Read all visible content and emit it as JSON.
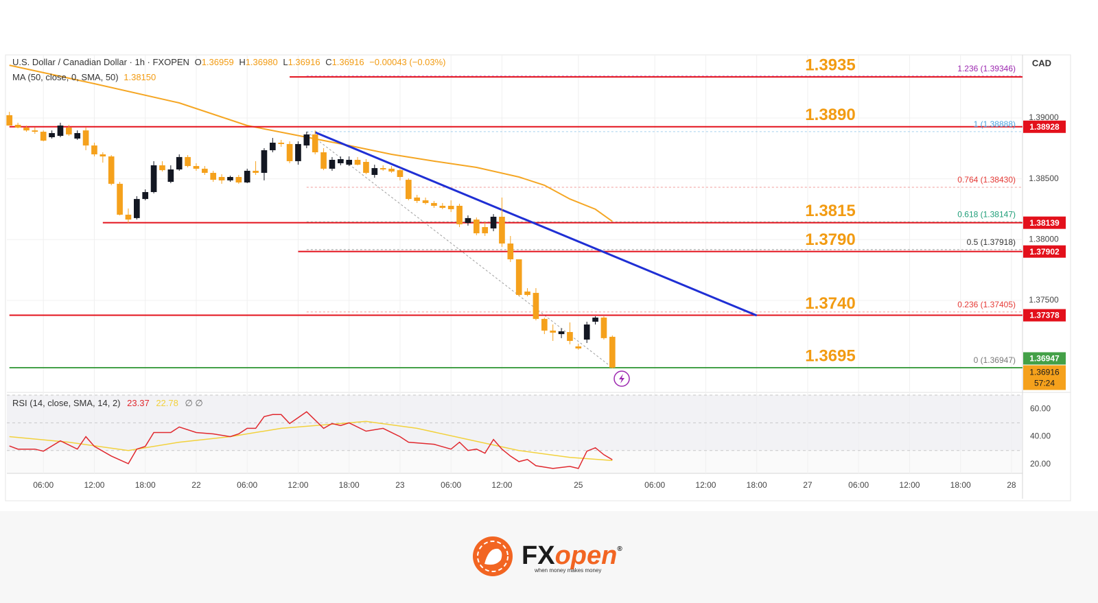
{
  "chart_data": {
    "type": "candlestick",
    "header": {
      "symbol": "U.S. Dollar / Canadian Dollar · 1h · FXOPEN",
      "o_label": "O",
      "open": "1.36959",
      "h_label": "H",
      "high": "1.36980",
      "l_label": "L",
      "low": "1.36916",
      "c_label": "C",
      "close": "1.36916",
      "change": "−0.00043 (−0.03%)"
    },
    "currency": "CAD",
    "xlim": [
      -0.3,
      119.3
    ],
    "xticks": [
      {
        "value": 4,
        "label": "06:00"
      },
      {
        "value": 10,
        "label": "12:00"
      },
      {
        "value": 16,
        "label": "18:00"
      },
      {
        "value": 22,
        "label": "22"
      },
      {
        "value": 28,
        "label": "06:00"
      },
      {
        "value": 34,
        "label": "12:00"
      },
      {
        "value": 40,
        "label": "18:00"
      },
      {
        "value": 46,
        "label": "23"
      },
      {
        "value": 52,
        "label": "06:00"
      },
      {
        "value": 58,
        "label": "12:00"
      },
      {
        "value": 67,
        "label": "25"
      },
      {
        "value": 76,
        "label": "06:00"
      },
      {
        "value": 82,
        "label": "12:00"
      },
      {
        "value": 88,
        "label": "18:00"
      },
      {
        "value": 94,
        "label": "27"
      },
      {
        "value": 100,
        "label": "06:00"
      },
      {
        "value": 106,
        "label": "12:00"
      },
      {
        "value": 112,
        "label": "18:00"
      },
      {
        "value": 118,
        "label": "28"
      }
    ],
    "ylim": [
      1.36755,
      1.39519
    ],
    "yticks": [
      {
        "value": 1.375,
        "label": "1.37500"
      },
      {
        "value": 1.38,
        "label": "1.38000"
      },
      {
        "value": 1.385,
        "label": "1.38500"
      },
      {
        "value": 1.39,
        "label": "1.39000"
      }
    ],
    "grid": true,
    "up_color": "#131722",
    "down_color": "#f5a11c",
    "open": [
      1.39023,
      1.38944,
      1.38921,
      1.38898,
      1.38887,
      1.38842,
      1.38853,
      1.38921,
      1.38831,
      1.38898,
      1.38774,
      1.38701,
      1.38684,
      1.38459,
      1.38205,
      1.38177,
      1.38334,
      1.38391,
      1.38611,
      1.38475,
      1.38577,
      1.38679,
      1.38605,
      1.38583,
      1.38549,
      1.38515,
      1.38487,
      1.38515,
      1.3847,
      1.38566,
      1.38549,
      1.38735,
      1.38797,
      1.38786,
      1.38645,
      1.38774,
      1.38865,
      1.38718,
      1.38583,
      1.38628,
      1.38616,
      1.38656,
      1.38639,
      1.38532,
      1.38588,
      1.38583,
      1.38571,
      1.38492,
      1.38346,
      1.38323,
      1.38301,
      1.38278,
      1.38278,
      1.38278,
      1.38137,
      1.38165,
      1.38103,
      1.38092,
      1.38188,
      1.37968,
      1.37838,
      1.37573,
      1.37562,
      1.37348,
      1.37252,
      1.37223,
      1.3724,
      1.37122,
      1.37178,
      1.37325,
      1.37359,
      1.37201
    ],
    "high": [
      1.39051,
      1.38961,
      1.38938,
      1.38921,
      1.38898,
      1.38898,
      1.38961,
      1.38944,
      1.38898,
      1.38921,
      1.38797,
      1.38718,
      1.38695,
      1.38475,
      1.38256,
      1.38357,
      1.38413,
      1.38645,
      1.38645,
      1.38611,
      1.38701,
      1.38695,
      1.38628,
      1.38605,
      1.38566,
      1.38538,
      1.38526,
      1.38532,
      1.38583,
      1.38645,
      1.38752,
      1.38836,
      1.3882,
      1.38808,
      1.38808,
      1.38887,
      1.38898,
      1.38752,
      1.38679,
      1.38684,
      1.38684,
      1.38679,
      1.38662,
      1.38616,
      1.38611,
      1.38605,
      1.38588,
      1.38504,
      1.38368,
      1.38346,
      1.38318,
      1.38301,
      1.38323,
      1.38295,
      1.38199,
      1.38182,
      1.38143,
      1.3821,
      1.38346,
      1.3803,
      1.37838,
      1.37601,
      1.37601,
      1.37359,
      1.37302,
      1.37269,
      1.37319,
      1.37144,
      1.37325,
      1.3737,
      1.3737,
      1.37212
    ],
    "low": [
      1.38938,
      1.38915,
      1.38887,
      1.3887,
      1.38808,
      1.38831,
      1.38842,
      1.38853,
      1.3882,
      1.38735,
      1.38684,
      1.38633,
      1.38447,
      1.38199,
      1.38137,
      1.38165,
      1.38323,
      1.3838,
      1.3856,
      1.38464,
      1.38566,
      1.38594,
      1.38566,
      1.38532,
      1.38475,
      1.38459,
      1.38475,
      1.38459,
      1.38464,
      1.38532,
      1.38487,
      1.38718,
      1.38763,
      1.38628,
      1.38616,
      1.38752,
      1.38701,
      1.38571,
      1.38566,
      1.38611,
      1.38605,
      1.38611,
      1.38538,
      1.38509,
      1.38566,
      1.38549,
      1.38487,
      1.38323,
      1.38301,
      1.38289,
      1.38261,
      1.3825,
      1.38227,
      1.38103,
      1.38115,
      1.38036,
      1.3803,
      1.38069,
      1.3794,
      1.37816,
      1.37534,
      1.37534,
      1.37336,
      1.37223,
      1.37167,
      1.3719,
      1.37139,
      1.37094,
      1.3715,
      1.37302,
      1.37178,
      1.36941
    ],
    "close": [
      1.38938,
      1.38921,
      1.38898,
      1.38887,
      1.38814,
      1.38876,
      1.38938,
      1.38865,
      1.38876,
      1.38774,
      1.38701,
      1.38684,
      1.38459,
      1.38205,
      1.38165,
      1.38334,
      1.38391,
      1.38611,
      1.38571,
      1.38577,
      1.38679,
      1.38605,
      1.38583,
      1.38549,
      1.38492,
      1.38487,
      1.38515,
      1.3847,
      1.38566,
      1.38549,
      1.38735,
      1.38797,
      1.38786,
      1.38645,
      1.38786,
      1.38865,
      1.38718,
      1.38583,
      1.38656,
      1.38662,
      1.38656,
      1.38616,
      1.38549,
      1.38588,
      1.38577,
      1.3856,
      1.38515,
      1.38334,
      1.38318,
      1.38301,
      1.38278,
      1.38261,
      1.3825,
      1.38126,
      1.38177,
      1.38052,
      1.38052,
      1.38188,
      1.37968,
      1.37838,
      1.37545,
      1.37545,
      1.37348,
      1.37252,
      1.37235,
      1.37246,
      1.37167,
      1.37105,
      1.37302,
      1.37359,
      1.3719,
      1.36947
    ],
    "ma": {
      "name": "MA (50, close, 0, SMA, 50)",
      "legend_value": "1.38150",
      "color": "#f5a623",
      "x": [
        0,
        10,
        20,
        28,
        35,
        40,
        45,
        50,
        55,
        60,
        63,
        66,
        69,
        71
      ],
      "values": [
        1.39434,
        1.39282,
        1.39124,
        1.38938,
        1.38842,
        1.38774,
        1.38701,
        1.38645,
        1.38594,
        1.38515,
        1.38447,
        1.38334,
        1.3825,
        1.3815
      ]
    },
    "levels": [
      {
        "value": 1.39338,
        "x_start": 33,
        "color": "#e3101b",
        "annotation": "1.3935",
        "boxed": false
      },
      {
        "value": 1.38928,
        "x_start": 0,
        "color": "#e3101b",
        "annotation": "1.3890",
        "boxed": true
      },
      {
        "value": 1.38139,
        "x_start": 11,
        "color": "#e3101b",
        "annotation": "1.3815",
        "boxed": true
      },
      {
        "value": 1.37902,
        "x_start": 34,
        "color": "#e3101b",
        "annotation": "1.3790",
        "boxed": true
      },
      {
        "value": 1.37378,
        "x_start": 0,
        "color": "#e3101b",
        "annotation": "1.3740",
        "boxed": true
      },
      {
        "value": 1.36947,
        "x_start": 0,
        "color": "#43a047",
        "annotation": "1.3695",
        "boxed": true
      }
    ],
    "last_price": {
      "value": 1.36916,
      "countdown": "57:24",
      "color": "#f5a11c"
    },
    "trendline": {
      "start_x": 36,
      "start": 1.38882,
      "end_x": 88,
      "end": 1.37376,
      "color": "#1f2fd4"
    },
    "fib": {
      "x_start": 35,
      "end_x": 71,
      "levels": [
        {
          "value": 1.39346,
          "label": "1.236 (1.39346)",
          "color": "#9c27b0"
        },
        {
          "value": 1.38888,
          "label": "1 (1.38888)",
          "color": "#4aa3df"
        },
        {
          "value": 1.3843,
          "label": "0.764 (1.38430)",
          "color": "#e53935"
        },
        {
          "value": 1.38147,
          "label": "0.618 (1.38147)",
          "color": "#1e9e78"
        },
        {
          "value": 1.37918,
          "label": "0.5 (1.37918)",
          "color": "#333333"
        },
        {
          "value": 1.37405,
          "label": "0.236 (1.37405)",
          "color": "#e53935"
        },
        {
          "value": 1.36947,
          "label": "0 (1.36947)",
          "color": "#787878"
        }
      ]
    },
    "rsi": {
      "name": "RSI (14, close, SMA, 14, 2)",
      "color": "#e0282e",
      "extra": "∅ ∅",
      "ylim": [
        13.5,
        70.5
      ],
      "yticks": [
        {
          "value": 20,
          "label": "20.00"
        },
        {
          "value": 40,
          "label": "40.00"
        },
        {
          "value": 60,
          "label": "60.00"
        }
      ],
      "band": [
        30,
        70
      ],
      "midline": 50,
      "x": [
        0,
        1,
        3,
        4,
        6,
        8,
        9,
        10,
        12,
        14,
        15,
        16,
        17,
        19,
        20,
        22,
        24,
        26,
        27,
        28,
        29,
        30,
        31,
        32,
        33,
        35,
        36,
        37,
        38,
        39,
        40,
        42,
        44,
        46,
        47,
        50,
        52,
        53,
        54,
        55,
        56,
        57,
        58,
        59,
        60,
        61,
        62,
        64,
        66,
        67,
        68,
        69,
        70,
        71
      ],
      "values": [
        33.3,
        31,
        31,
        29.5,
        37,
        31,
        40,
        33,
        26,
        20.5,
        31,
        33,
        43,
        43,
        47,
        43,
        42,
        40,
        42,
        46,
        46,
        54.5,
        56,
        56,
        49.5,
        58,
        52,
        46,
        49.5,
        48,
        50,
        44,
        46,
        40,
        36,
        34.5,
        31,
        36,
        30,
        31,
        28,
        38,
        31,
        26,
        22,
        23.5,
        19,
        17,
        18.5,
        17,
        29.5,
        32,
        27,
        23.37
      ],
      "sma": {
        "color": "#f2d13c",
        "x": [
          0,
          7,
          14,
          20,
          26,
          32,
          38,
          42,
          48,
          54,
          60,
          66,
          71
        ],
        "values": [
          40,
          36,
          30,
          36,
          40,
          46,
          49,
          51,
          46,
          38,
          30,
          25,
          22.78
        ]
      }
    }
  },
  "logo": {
    "brand_a": "FX",
    "brand_b": "open",
    "registered": "®",
    "tagline": "when money makes money"
  }
}
